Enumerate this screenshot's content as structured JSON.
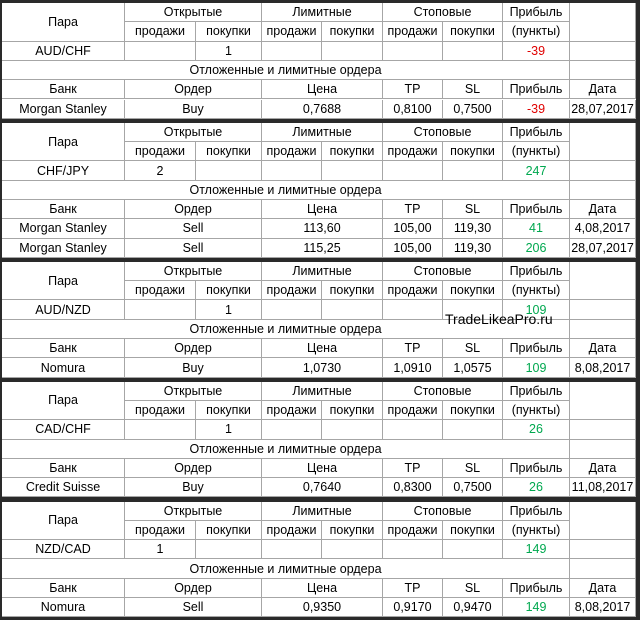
{
  "watermark": "TradeLikeaPro.ru",
  "blocks": [
    {
      "header": [
        "Пара",
        "Открытые",
        "Лимитные",
        "Стоповые",
        "Прибыль"
      ],
      "subheader": [
        "продажи",
        "покупки",
        "продажи",
        "покупки",
        "продажи",
        "покупки",
        "(пункты)"
      ],
      "pair_row": [
        "AUD/CHF",
        null,
        "1",
        null,
        null,
        null,
        null,
        -39
      ],
      "pending_title": "Отложенные и лимитные ордера",
      "orders_header": [
        "Банк",
        "Ордер",
        "Цена",
        "TP",
        "SL",
        "Прибыль",
        "Дата"
      ],
      "orders": [
        [
          "Morgan Stanley",
          "Buy",
          "0,7688",
          "0,8100",
          "0,7500",
          -39,
          "28,07,2017"
        ]
      ]
    },
    {
      "header": [
        "Пара",
        "Открытые",
        "Лимитные",
        "Стоповые",
        "Прибыль"
      ],
      "subheader": [
        "продажи",
        "покупки",
        "продажи",
        "покупки",
        "продажи",
        "покупки",
        "(пункты)"
      ],
      "pair_row": [
        "CHF/JPY",
        "2",
        null,
        null,
        null,
        null,
        null,
        247
      ],
      "pending_title": "Отложенные и лимитные ордера",
      "orders_header": [
        "Банк",
        "Ордер",
        "Цена",
        "TP",
        "SL",
        "Прибыль",
        "Дата"
      ],
      "orders": [
        [
          "Morgan Stanley",
          "Sell",
          "113,60",
          "105,00",
          "119,30",
          41,
          "4,08,2017"
        ],
        [
          "Morgan Stanley",
          "Sell",
          "115,25",
          "105,00",
          "119,30",
          206,
          "28,07,2017"
        ]
      ]
    },
    {
      "header": [
        "Пара",
        "Открытые",
        "Лимитные",
        "Стоповые",
        "Прибыль"
      ],
      "subheader": [
        "продажи",
        "покупки",
        "продажи",
        "покупки",
        "продажи",
        "покупки",
        "(пункты)"
      ],
      "pair_row": [
        "AUD/NZD",
        null,
        "1",
        null,
        null,
        null,
        null,
        109
      ],
      "pending_title": "Отложенные и лимитные ордера",
      "orders_header": [
        "Банк",
        "Ордер",
        "Цена",
        "TP",
        "SL",
        "Прибыль",
        "Дата"
      ],
      "orders": [
        [
          "Nomura",
          "Buy",
          "1,0730",
          "1,0910",
          "1,0575",
          109,
          "8,08,2017"
        ]
      ]
    },
    {
      "header": [
        "Пара",
        "Открытые",
        "Лимитные",
        "Стоповые",
        "Прибыль"
      ],
      "subheader": [
        "продажи",
        "покупки",
        "продажи",
        "покупки",
        "продажи",
        "покупки",
        "(пункты)"
      ],
      "pair_row": [
        "CAD/CHF",
        null,
        "1",
        null,
        null,
        null,
        null,
        26
      ],
      "pending_title": "Отложенные и лимитные ордера",
      "orders_header": [
        "Банк",
        "Ордер",
        "Цена",
        "TP",
        "SL",
        "Прибыль",
        "Дата"
      ],
      "orders": [
        [
          "Credit Suisse",
          "Buy",
          "0,7640",
          "0,8300",
          "0,7500",
          26,
          "11,08,2017"
        ]
      ]
    },
    {
      "header": [
        "Пара",
        "Открытые",
        "Лимитные",
        "Стоповые",
        "Прибыль"
      ],
      "subheader": [
        "продажи",
        "покупки",
        "продажи",
        "покупки",
        "продажи",
        "покупки",
        "(пункты)"
      ],
      "pair_row": [
        "NZD/CAD",
        "1",
        null,
        null,
        null,
        null,
        null,
        149
      ],
      "pending_title": "Отложенные и лимитные ордера",
      "orders_header": [
        "Банк",
        "Ордер",
        "Цена",
        "TP",
        "SL",
        "Прибыль",
        "Дата"
      ],
      "orders": [
        [
          "Nomura",
          "Sell",
          "0,9350",
          "0,9170",
          "0,9470",
          149,
          "8,08,2017"
        ]
      ]
    }
  ]
}
